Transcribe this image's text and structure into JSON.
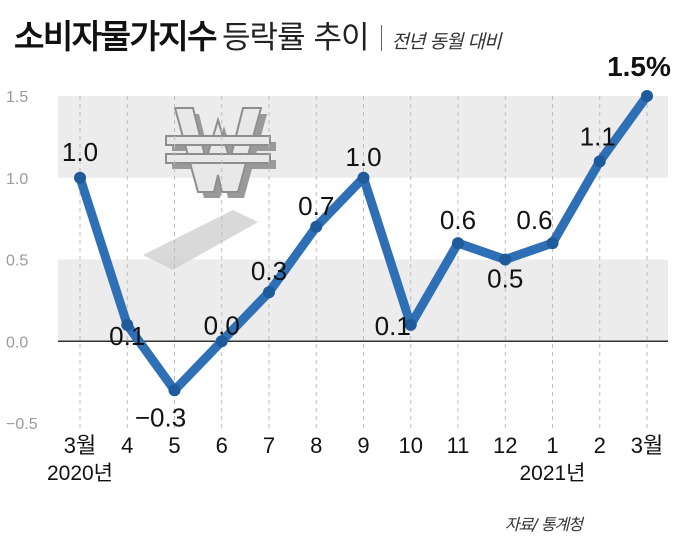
{
  "header": {
    "title": "소비자물가지수",
    "subtitle": "등락률 추이",
    "note": "전년 동월 대비"
  },
  "source": "자료/ 통계청",
  "chart_data": {
    "type": "line",
    "title": "소비자물가지수 등락률 추이",
    "subtitle": "전년 동월 대비",
    "categories": [
      "3월",
      "4",
      "5",
      "6",
      "7",
      "8",
      "9",
      "10",
      "11",
      "12",
      "1",
      "2",
      "3월"
    ],
    "year_labels": [
      {
        "index": 0,
        "label": "2020년"
      },
      {
        "index": 10,
        "label": "2021년"
      }
    ],
    "values": [
      1.0,
      0.1,
      -0.3,
      0.0,
      0.3,
      0.7,
      1.0,
      0.1,
      0.6,
      0.5,
      0.6,
      1.1,
      1.5
    ],
    "data_labels": [
      "1.0",
      "0.1",
      "−0.3",
      "0.0",
      "0.3",
      "0.7",
      "1.0",
      "0.1",
      "0.6",
      "0.5",
      "0.6",
      "1.1",
      "1.5%"
    ],
    "yticks": [
      1.5,
      1.0,
      0.5,
      0.0,
      -0.5
    ],
    "ytick_labels": [
      "1.5",
      "1.0",
      "0.5",
      "0.0",
      "−0.5"
    ],
    "ylim": [
      -0.5,
      1.5
    ],
    "xlabel": "",
    "ylabel": "",
    "grid": "shaded bands",
    "line_color": "#2f6fb6",
    "band_color": "#ececec"
  }
}
